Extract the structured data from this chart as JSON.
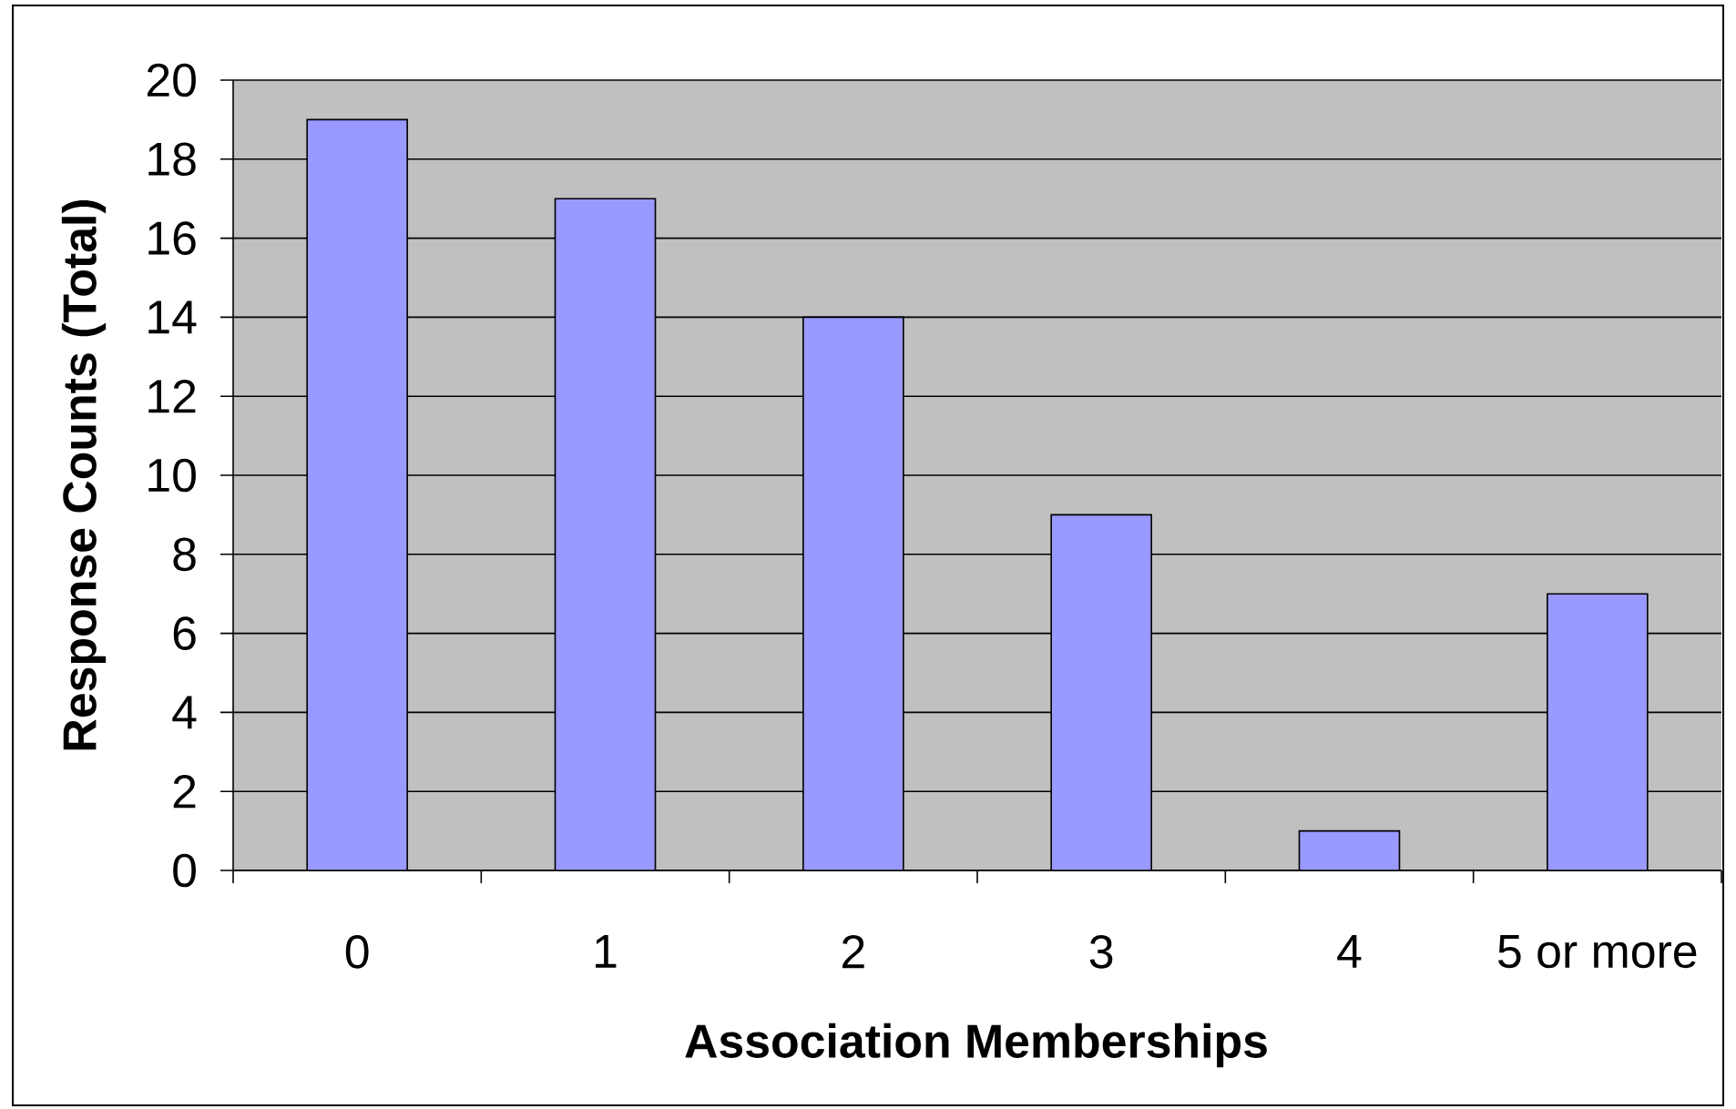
{
  "chart_data": {
    "type": "bar",
    "xlabel": "Association Memberships",
    "ylabel": "Response Counts (Total)",
    "categories": [
      "0",
      "1",
      "2",
      "3",
      "4",
      "5 or more"
    ],
    "values": [
      19,
      17,
      14,
      9,
      1,
      7
    ],
    "color": "#9999ff",
    "ylim": [
      0,
      20
    ],
    "yticks": [
      0,
      2,
      4,
      6,
      8,
      10,
      12,
      14,
      16,
      18,
      20
    ],
    "grid": "y"
  }
}
